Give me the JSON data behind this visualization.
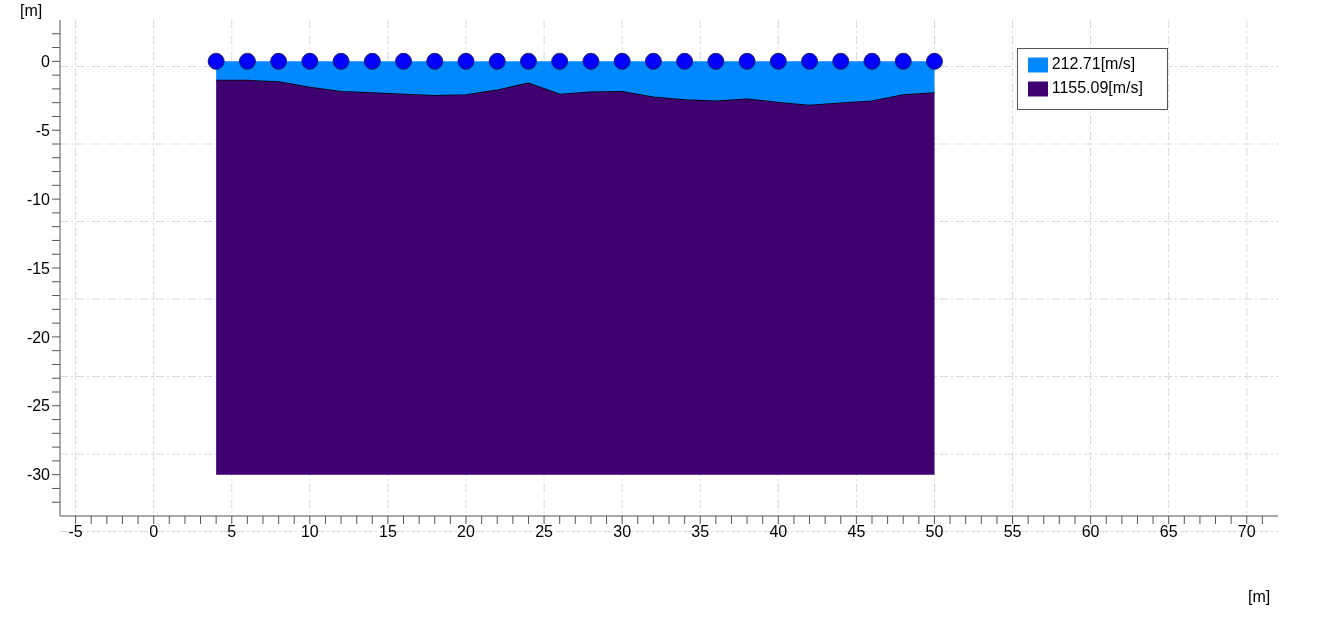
{
  "chart_data": {
    "type": "area",
    "xlabel": "[m]",
    "ylabel": "[m]",
    "x": [
      4,
      6,
      8,
      10,
      12,
      14,
      16,
      18,
      20,
      22,
      24,
      26,
      28,
      30,
      32,
      34,
      36,
      38,
      40,
      42,
      44,
      46,
      48,
      50
    ],
    "series": [
      {
        "name": "212.71[m/s]",
        "type": "area",
        "color": "#0088ff",
        "values": [
          -1.4,
          -1.4,
          -1.5,
          -1.9,
          -2.2,
          -2.3,
          -2.4,
          -2.5,
          -2.45,
          -2.1,
          -1.6,
          -2.4,
          -2.25,
          -2.2,
          -2.6,
          -2.8,
          -2.9,
          -2.75,
          -3.0,
          -3.2,
          -3.05,
          -2.9,
          -2.45,
          -2.3
        ]
      },
      {
        "name": "1155.09[m/s]",
        "type": "area",
        "color": "#3f0070",
        "values": [
          -28.6,
          -28.6,
          -28.5,
          -28.1,
          -27.8,
          -27.7,
          -27.6,
          -27.5,
          -27.55,
          -27.9,
          -28.4,
          -27.6,
          -27.75,
          -27.8,
          -27.4,
          -27.2,
          -27.1,
          -27.25,
          -27.0,
          -26.8,
          -26.95,
          -27.1,
          -27.55,
          -27.7
        ]
      },
      {
        "type": "scatter",
        "color": "#0000ff",
        "marker": "circle",
        "values": [
          0,
          0,
          0,
          0,
          0,
          0,
          0,
          0,
          0,
          0,
          0,
          0,
          0,
          0,
          0,
          0,
          0,
          0,
          0,
          0,
          0,
          0,
          0,
          0
        ]
      }
    ],
    "xlim": [
      -6,
      72
    ],
    "xticks": [
      -5,
      {
        "value": -4,
        "label": null
      },
      {
        "value": -3,
        "label": null
      },
      {
        "value": -2,
        "label": null
      },
      {
        "value": -1,
        "label": null
      },
      0,
      {
        "value": 1,
        "label": null
      },
      {
        "value": 2,
        "label": null
      },
      {
        "value": 3,
        "label": null
      },
      {
        "value": 4,
        "label": null
      },
      5,
      {
        "value": 6,
        "label": null
      },
      {
        "value": 7,
        "label": null
      },
      {
        "value": 8,
        "label": null
      },
      {
        "value": 9,
        "label": null
      },
      10,
      {
        "value": 11,
        "label": null
      },
      {
        "value": 12,
        "label": null
      },
      {
        "value": 13,
        "label": null
      },
      {
        "value": 14,
        "label": null
      },
      15,
      {
        "value": 16,
        "label": null
      },
      {
        "value": 17,
        "label": null
      },
      {
        "value": 18,
        "label": null
      },
      {
        "value": 19,
        "label": null
      },
      20,
      {
        "value": 21,
        "label": null
      },
      {
        "value": 22,
        "label": null
      },
      {
        "value": 23,
        "label": null
      },
      {
        "value": 24,
        "label": null
      },
      25,
      {
        "value": 26,
        "label": null
      },
      {
        "value": 27,
        "label": null
      },
      {
        "value": 28,
        "label": null
      },
      {
        "value": 29,
        "label": null
      },
      30,
      {
        "value": 31,
        "label": null
      },
      {
        "value": 32,
        "label": null
      },
      {
        "value": 33,
        "label": null
      },
      {
        "value": 34,
        "label": null
      },
      35,
      {
        "value": 36,
        "label": null
      },
      {
        "value": 37,
        "label": null
      },
      {
        "value": 38,
        "label": null
      },
      {
        "value": 39,
        "label": null
      },
      40,
      {
        "value": 41,
        "label": null
      },
      {
        "value": 42,
        "label": null
      },
      {
        "value": 43,
        "label": null
      },
      {
        "value": 44,
        "label": null
      },
      45,
      {
        "value": 46,
        "label": null
      },
      {
        "value": 47,
        "label": null
      },
      {
        "value": 48,
        "label": null
      },
      {
        "value": 49,
        "label": null
      },
      50,
      {
        "value": 51,
        "label": null
      },
      {
        "value": 52,
        "label": null
      },
      {
        "value": 53,
        "label": null
      },
      {
        "value": 54,
        "label": null
      },
      55,
      {
        "value": 56,
        "label": null
      },
      {
        "value": 57,
        "label": null
      },
      {
        "value": 58,
        "label": null
      },
      {
        "value": 59,
        "label": null
      },
      60,
      {
        "value": 61,
        "label": null
      },
      {
        "value": 62,
        "label": null
      },
      {
        "value": 63,
        "label": null
      },
      {
        "value": 64,
        "label": null
      },
      65,
      {
        "value": 66,
        "label": null
      },
      {
        "value": 67,
        "label": null
      },
      {
        "value": 68,
        "label": null
      },
      {
        "value": 69,
        "label": null
      },
      70,
      {
        "value": 71,
        "label": null
      }
    ],
    "ylim": [
      -33,
      3
    ],
    "yticks": [
      {
        "value": -32,
        "label": null
      },
      {
        "value": -31,
        "label": null
      },
      -30,
      {
        "value": -29,
        "label": null
      },
      {
        "value": -28,
        "label": null
      },
      {
        "value": -27,
        "label": null
      },
      {
        "value": -26,
        "label": null
      },
      -25,
      {
        "value": -24,
        "label": null
      },
      {
        "value": -23,
        "label": null
      },
      {
        "value": -22,
        "label": null
      },
      {
        "value": -21,
        "label": null
      },
      -20,
      {
        "value": -19,
        "label": null
      },
      {
        "value": -18,
        "label": null
      },
      {
        "value": -17,
        "label": null
      },
      {
        "value": -16,
        "label": null
      },
      -15,
      {
        "value": -14,
        "label": null
      },
      {
        "value": -13,
        "label": null
      },
      {
        "value": -12,
        "label": null
      },
      {
        "value": -11,
        "label": null
      },
      -10,
      {
        "value": -9,
        "label": null
      },
      {
        "value": -8,
        "label": null
      },
      {
        "value": -7,
        "label": null
      },
      {
        "value": -6,
        "label": null
      },
      -5,
      {
        "value": -4,
        "label": null
      },
      {
        "value": -3,
        "label": null
      },
      {
        "value": -2,
        "label": null
      },
      {
        "value": -1,
        "label": null
      },
      0,
      {
        "value": 1,
        "label": null
      },
      {
        "value": 2,
        "label": null
      }
    ],
    "stacked": true,
    "grid": true,
    "legend": "top right"
  }
}
